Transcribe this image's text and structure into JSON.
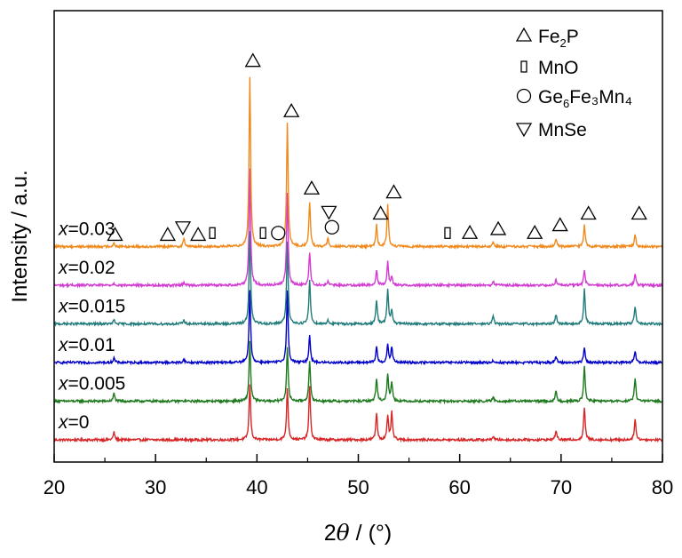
{
  "chart_data": {
    "type": "line",
    "title": "",
    "xlabel_theta_prefix": "2",
    "xlabel_theta_symbol": "θ",
    "xlabel_unit": " / (°)",
    "ylabel": "Intensity / a.u.",
    "xlim": [
      20,
      80
    ],
    "xticks": [
      "20",
      "30",
      "40",
      "50",
      "60",
      "70",
      "80"
    ],
    "grid": false,
    "legend_placement": "top-right",
    "legend": [
      {
        "symbol": "triangle-up",
        "label_main": "Fe",
        "label_sub": "2",
        "label_tail": "P"
      },
      {
        "symbol": "rect",
        "label_main": "MnO",
        "label_sub": "",
        "label_tail": ""
      },
      {
        "symbol": "circle",
        "label_main": "Ge",
        "label_sub": "6",
        "label_tail": "Fe₃Mn₄"
      },
      {
        "symbol": "triangle-down",
        "label_main": "MnSe",
        "label_sub": "",
        "label_tail": ""
      }
    ],
    "series": [
      {
        "label_var": "x",
        "label_value": "=0",
        "color": "#d62728",
        "base": 0.0
      },
      {
        "label_var": "x",
        "label_value": "=0.005",
        "color": "#1f7a1f",
        "base": 1.0
      },
      {
        "label_var": "x",
        "label_value": "=0.01",
        "color": "#0000c8",
        "base": 2.0
      },
      {
        "label_var": "x",
        "label_value": "=0.015",
        "color": "#217b7b",
        "base": 3.0
      },
      {
        "label_var": "x",
        "label_value": "=0.02",
        "color": "#d23ad2",
        "base": 4.0
      },
      {
        "label_var": "x",
        "label_value": "=0.03",
        "color": "#f08a1e",
        "base": 5.0
      }
    ],
    "peaks": [
      {
        "pos": 25.9,
        "heights": [
          0.2,
          0.2,
          0.12,
          0.1,
          0.05,
          0.1
        ]
      },
      {
        "pos": 32.8,
        "heights": [
          0,
          0,
          0.08,
          0.1,
          0.08,
          0.22
        ]
      },
      {
        "pos": 39.3,
        "heights": [
          1.45,
          1.55,
          1.9,
          2.4,
          3.0,
          4.4
        ]
      },
      {
        "pos": 43.0,
        "heights": [
          1.35,
          1.4,
          1.85,
          2.1,
          2.4,
          3.2
        ]
      },
      {
        "pos": 45.2,
        "heights": [
          1.4,
          1.05,
          0.72,
          1.15,
          0.85,
          1.15
        ]
      },
      {
        "pos": 47.0,
        "heights": [
          0,
          0,
          0,
          0.1,
          0.1,
          0.2
        ]
      },
      {
        "pos": 51.8,
        "heights": [
          0.7,
          0.6,
          0.4,
          0.6,
          0.4,
          0.55
        ]
      },
      {
        "pos": 52.9,
        "heights": [
          0.6,
          0.7,
          0.45,
          0.9,
          0.6,
          1.1
        ]
      },
      {
        "pos": 53.3,
        "heights": [
          0.7,
          0.5,
          0.4,
          0.35,
          0.2,
          0
        ]
      },
      {
        "pos": 63.3,
        "heights": [
          0.1,
          0.1,
          0.05,
          0.2,
          0.1,
          0.12
        ]
      },
      {
        "pos": 69.5,
        "heights": [
          0.25,
          0.25,
          0.15,
          0.25,
          0.15,
          0.2
        ]
      },
      {
        "pos": 72.3,
        "heights": [
          0.85,
          0.9,
          0.4,
          0.9,
          0.4,
          0.55
        ]
      },
      {
        "pos": 77.3,
        "heights": [
          0.55,
          0.6,
          0.3,
          0.45,
          0.3,
          0.32
        ]
      }
    ],
    "annotations": [
      {
        "symbol": "triangle-up",
        "x": 26.0,
        "y": 5.3
      },
      {
        "symbol": "triangle-up",
        "x": 31.2,
        "y": 5.3
      },
      {
        "symbol": "triangle-down",
        "x": 32.7,
        "y": 5.5
      },
      {
        "symbol": "triangle-up",
        "x": 34.2,
        "y": 5.3
      },
      {
        "symbol": "rect",
        "x": 35.6,
        "y": 5.35
      },
      {
        "symbol": "triangle-up",
        "x": 39.6,
        "y": 9.8
      },
      {
        "symbol": "rect",
        "x": 40.6,
        "y": 5.35
      },
      {
        "symbol": "circle",
        "x": 42.1,
        "y": 5.35
      },
      {
        "symbol": "triangle-up",
        "x": 43.4,
        "y": 8.5
      },
      {
        "symbol": "triangle-up",
        "x": 45.4,
        "y": 6.5
      },
      {
        "symbol": "triangle-down",
        "x": 47.1,
        "y": 5.9
      },
      {
        "symbol": "circle",
        "x": 47.4,
        "y": 5.5
      },
      {
        "symbol": "triangle-up",
        "x": 52.2,
        "y": 5.85
      },
      {
        "symbol": "triangle-up",
        "x": 53.5,
        "y": 6.4
      },
      {
        "symbol": "rect",
        "x": 58.8,
        "y": 5.35
      },
      {
        "symbol": "triangle-up",
        "x": 61.0,
        "y": 5.35
      },
      {
        "symbol": "triangle-up",
        "x": 63.8,
        "y": 5.45
      },
      {
        "symbol": "triangle-up",
        "x": 67.4,
        "y": 5.35
      },
      {
        "symbol": "triangle-up",
        "x": 69.9,
        "y": 5.55
      },
      {
        "symbol": "triangle-up",
        "x": 72.7,
        "y": 5.85
      },
      {
        "symbol": "triangle-up",
        "x": 77.7,
        "y": 5.85
      }
    ]
  }
}
